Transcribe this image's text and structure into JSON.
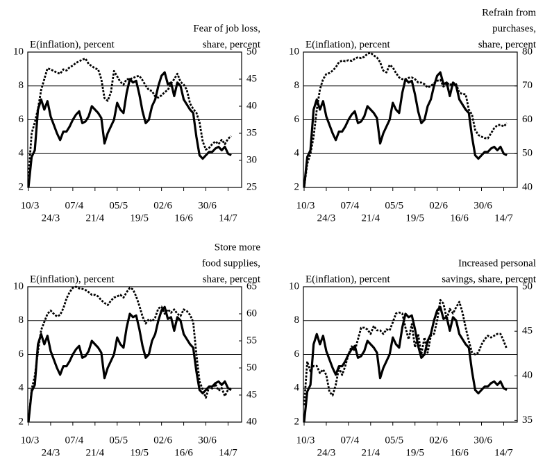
{
  "chart_data": [
    {
      "type": "line",
      "ylabel": "E(inflation), percent",
      "y2label": [
        "Fear of job loss,",
        "share, percent"
      ],
      "categories": [
        "10/3",
        null,
        null,
        null,
        null,
        null,
        null,
        "24/3",
        null,
        null,
        null,
        null,
        null,
        null,
        "07/4",
        null,
        null,
        null,
        null,
        null,
        null,
        "21/4",
        null,
        null,
        null,
        null,
        null,
        null,
        "05/5",
        null,
        null,
        null,
        null,
        null,
        null,
        "19/5",
        null,
        null,
        null,
        null,
        null,
        null,
        "02/6",
        null,
        null,
        null,
        null,
        null,
        null,
        "16/6",
        null,
        null,
        null,
        null,
        null,
        null,
        "30/6",
        null,
        null,
        null,
        null,
        null,
        null,
        "14/7",
        null
      ],
      "ylim": [
        2,
        10
      ],
      "yticks": [
        2,
        4,
        6,
        8,
        10
      ],
      "y2lim": [
        25,
        50
      ],
      "y2ticks": [
        25,
        30,
        35,
        40,
        45,
        50
      ],
      "grid": true,
      "series": [
        {
          "color": "#000000",
          "style": "solid",
          "values": [
            2.0,
            3.8,
            4.2,
            6.6,
            7.2,
            6.6,
            7.1,
            6.2,
            5.7,
            5.2,
            4.8,
            5.3,
            5.3,
            5.6,
            6.0,
            6.3,
            6.5,
            5.8,
            5.9,
            6.2,
            6.8,
            6.6,
            6.4,
            6.1,
            4.6,
            5.2,
            5.6,
            6.0,
            7.0,
            6.6,
            6.4,
            7.6,
            8.4,
            8.2,
            8.3,
            7.5,
            6.5,
            5.8,
            6.0,
            6.8,
            7.2,
            8.0,
            8.6,
            8.8,
            8.1,
            8.2,
            7.4,
            8.2,
            8.0,
            7.2,
            6.9,
            6.6,
            6.4,
            5.0,
            3.9,
            3.7,
            3.9,
            4.1,
            4.1,
            4.3,
            4.4,
            4.2,
            4.4,
            4.0,
            3.9
          ]
        },
        {
          "color": "#000000",
          "style": "dotted",
          "axis": "y2",
          "values": [
            27,
            35,
            37,
            39.5,
            43,
            45,
            47,
            46.8,
            46.5,
            46.2,
            46,
            46.8,
            46.6,
            47.2,
            47.5,
            48,
            48.3,
            48.6,
            48.8,
            47.8,
            47.4,
            47,
            46.8,
            45,
            41.5,
            41,
            42.5,
            46.5,
            45.5,
            44.5,
            44,
            45,
            45,
            45.2,
            45.5,
            45.6,
            44.8,
            43.8,
            43,
            42.8,
            41.8,
            41.6,
            42,
            42.6,
            43,
            44.2,
            45,
            46,
            44.5,
            44,
            43,
            40.5,
            39.5,
            38.8,
            37,
            33.5,
            32,
            32.3,
            33,
            33.5,
            33,
            33.8,
            33,
            34,
            34.5
          ]
        }
      ]
    },
    {
      "type": "line",
      "ylabel": "E(inflation), percent",
      "y2label": [
        "Refrain from",
        "purchases,",
        "share, percent"
      ],
      "categories": [
        "10/3",
        null,
        null,
        null,
        null,
        null,
        null,
        "24/3",
        null,
        null,
        null,
        null,
        null,
        null,
        "07/4",
        null,
        null,
        null,
        null,
        null,
        null,
        "21/4",
        null,
        null,
        null,
        null,
        null,
        null,
        "05/5",
        null,
        null,
        null,
        null,
        null,
        null,
        "19/5",
        null,
        null,
        null,
        null,
        null,
        null,
        "02/6",
        null,
        null,
        null,
        null,
        null,
        null,
        "16/6",
        null,
        null,
        null,
        null,
        null,
        null,
        "30/6",
        null,
        null,
        null,
        null,
        null,
        null,
        "14/7",
        null
      ],
      "ylim": [
        2,
        10
      ],
      "yticks": [
        2,
        4,
        6,
        8,
        10
      ],
      "y2lim": [
        40,
        80
      ],
      "y2ticks": [
        40,
        50,
        60,
        70,
        80
      ],
      "grid": true,
      "series": [
        {
          "color": "#000000",
          "style": "solid",
          "values": [
            2.0,
            3.8,
            4.2,
            6.6,
            7.2,
            6.6,
            7.1,
            6.2,
            5.7,
            5.2,
            4.8,
            5.3,
            5.3,
            5.6,
            6.0,
            6.3,
            6.5,
            5.8,
            5.9,
            6.2,
            6.8,
            6.6,
            6.4,
            6.1,
            4.6,
            5.2,
            5.6,
            6.0,
            7.0,
            6.6,
            6.4,
            7.6,
            8.4,
            8.2,
            8.3,
            7.5,
            6.5,
            5.8,
            6.0,
            6.8,
            7.2,
            8.0,
            8.6,
            8.8,
            8.1,
            8.2,
            7.4,
            8.2,
            8.0,
            7.2,
            6.9,
            6.6,
            6.4,
            5.0,
            3.9,
            3.7,
            3.9,
            4.1,
            4.1,
            4.3,
            4.4,
            4.2,
            4.4,
            4.0,
            3.9
          ]
        },
        {
          "color": "#000000",
          "style": "dotted",
          "axis": "y2",
          "values": [
            40,
            47,
            50,
            55,
            63,
            69,
            72,
            73.5,
            73.8,
            74.5,
            75.5,
            77,
            77.5,
            77.3,
            77.6,
            77.4,
            78,
            78.5,
            78.2,
            78.6,
            79.5,
            79.8,
            79,
            78.4,
            77,
            74.5,
            74,
            76.2,
            75.5,
            73.8,
            72.5,
            72,
            72,
            72.4,
            72.5,
            72,
            71,
            71,
            70.5,
            69.5,
            70,
            70.8,
            71.5,
            71.8,
            69.8,
            71,
            70.2,
            71,
            70.5,
            68,
            67.6,
            67.5,
            63,
            61.5,
            57,
            55.5,
            55,
            54.6,
            54.5,
            56,
            57.5,
            58.4,
            58.5,
            58,
            59
          ]
        }
      ]
    },
    {
      "type": "line",
      "ylabel": "E(inflation), percent",
      "y2label": [
        "Store more",
        "food supplies,",
        "share, percent"
      ],
      "categories": [
        "10/3",
        null,
        null,
        null,
        null,
        null,
        null,
        "24/3",
        null,
        null,
        null,
        null,
        null,
        null,
        "07/4",
        null,
        null,
        null,
        null,
        null,
        null,
        "21/4",
        null,
        null,
        null,
        null,
        null,
        null,
        "05/5",
        null,
        null,
        null,
        null,
        null,
        null,
        "19/5",
        null,
        null,
        null,
        null,
        null,
        null,
        "02/6",
        null,
        null,
        null,
        null,
        null,
        null,
        "16/6",
        null,
        null,
        null,
        null,
        null,
        null,
        "30/6",
        null,
        null,
        null,
        null,
        null,
        null,
        "14/7",
        null
      ],
      "ylim": [
        2,
        10
      ],
      "yticks": [
        2,
        4,
        6,
        8,
        10
      ],
      "y2lim": [
        40,
        65
      ],
      "y2ticks": [
        40,
        45,
        50,
        55,
        60,
        65
      ],
      "grid": true,
      "series": [
        {
          "color": "#000000",
          "style": "solid",
          "values": [
            2.0,
            3.8,
            4.2,
            6.6,
            7.2,
            6.6,
            7.1,
            6.2,
            5.7,
            5.2,
            4.8,
            5.3,
            5.3,
            5.6,
            6.0,
            6.3,
            6.5,
            5.8,
            5.9,
            6.2,
            6.8,
            6.6,
            6.4,
            6.1,
            4.6,
            5.2,
            5.6,
            6.0,
            7.0,
            6.6,
            6.4,
            7.6,
            8.4,
            8.2,
            8.3,
            7.5,
            6.5,
            5.8,
            6.0,
            6.8,
            7.2,
            8.0,
            8.6,
            8.8,
            8.1,
            8.2,
            7.4,
            8.2,
            8.0,
            7.2,
            6.9,
            6.6,
            6.4,
            5.0,
            3.9,
            3.7,
            3.9,
            4.1,
            4.1,
            4.3,
            4.4,
            4.2,
            4.4,
            4.0,
            3.9
          ]
        },
        {
          "color": "#000000",
          "style": "dotted",
          "axis": "y2",
          "values": [
            40,
            46,
            48.5,
            53,
            57,
            58.5,
            60,
            60.6,
            60,
            59.5,
            59.8,
            61,
            62.8,
            64,
            64.8,
            65,
            64.7,
            64.6,
            64.4,
            64,
            63.5,
            63.5,
            63.2,
            62.5,
            62,
            61.6,
            62.4,
            63,
            63.2,
            63.5,
            63,
            64,
            64.8,
            64.5,
            63.2,
            61.5,
            59.5,
            58.2,
            59,
            58.6,
            59.3,
            61,
            61.3,
            60,
            60.8,
            60.2,
            60.8,
            60,
            59.6,
            60.8,
            60.5,
            59.8,
            58.5,
            52.5,
            47.5,
            46,
            44.5,
            46.5,
            46.2,
            47,
            45.8,
            46.3,
            44.8,
            46,
            46.3
          ]
        }
      ]
    },
    {
      "type": "line",
      "ylabel": "E(inflation), percent",
      "y2label": [
        "Increased personal",
        "savings, share, percent"
      ],
      "categories": [
        "10/3",
        null,
        null,
        null,
        null,
        null,
        null,
        "24/3",
        null,
        null,
        null,
        null,
        null,
        null,
        "07/4",
        null,
        null,
        null,
        null,
        null,
        null,
        "21/4",
        null,
        null,
        null,
        null,
        null,
        null,
        "05/5",
        null,
        null,
        null,
        null,
        null,
        null,
        "19/5",
        null,
        null,
        null,
        null,
        null,
        null,
        "02/6",
        null,
        null,
        null,
        null,
        null,
        null,
        "16/6",
        null,
        null,
        null,
        null,
        null,
        null,
        "30/6",
        null,
        null,
        null,
        null,
        null,
        null,
        "14/7",
        null
      ],
      "ylim": [
        2,
        10
      ],
      "yticks": [
        2,
        4,
        6,
        8,
        10
      ],
      "y2lim": [
        34.8,
        50
      ],
      "y2ticks": [
        35,
        40,
        45,
        50
      ],
      "grid": true,
      "series": [
        {
          "color": "#000000",
          "style": "solid",
          "values": [
            2.0,
            3.8,
            4.2,
            6.6,
            7.2,
            6.6,
            7.1,
            6.2,
            5.7,
            5.2,
            4.8,
            5.3,
            5.3,
            5.6,
            6.0,
            6.3,
            6.5,
            5.8,
            5.9,
            6.2,
            6.8,
            6.6,
            6.4,
            6.1,
            4.6,
            5.2,
            5.6,
            6.0,
            7.0,
            6.6,
            6.4,
            7.6,
            8.4,
            8.2,
            8.3,
            7.5,
            6.5,
            5.8,
            6.0,
            6.8,
            7.2,
            8.0,
            8.6,
            8.8,
            8.1,
            8.2,
            7.4,
            8.2,
            8.0,
            7.2,
            6.9,
            6.6,
            6.4,
            5.0,
            3.9,
            3.7,
            3.9,
            4.1,
            4.1,
            4.3,
            4.4,
            4.2,
            4.4,
            4.0,
            3.9
          ]
        },
        {
          "color": "#000000",
          "style": "dotted",
          "axis": "y2",
          "values": [
            36.7,
            41.6,
            40.5,
            41.1,
            41.1,
            40.3,
            40.7,
            40.1,
            38.2,
            37.8,
            39.0,
            40.9,
            40.1,
            41.1,
            42.4,
            43.3,
            42.8,
            44.1,
            45.4,
            45.4,
            45.2,
            44.7,
            45.6,
            45.1,
            45.1,
            44.7,
            45.2,
            45.1,
            46.0,
            47.0,
            47.1,
            47.0,
            45.4,
            44.1,
            45.8,
            43.2,
            44.7,
            42.4,
            44.3,
            42.6,
            44.5,
            44.7,
            46.2,
            48.5,
            48.1,
            46.4,
            47.5,
            47.0,
            47.7,
            48.3,
            47.1,
            45.4,
            43.9,
            42.6,
            42.4,
            42.6,
            43.5,
            44.1,
            44.5,
            44.3,
            44.5,
            44.7,
            44.7,
            43.9,
            43.0
          ]
        }
      ]
    }
  ]
}
